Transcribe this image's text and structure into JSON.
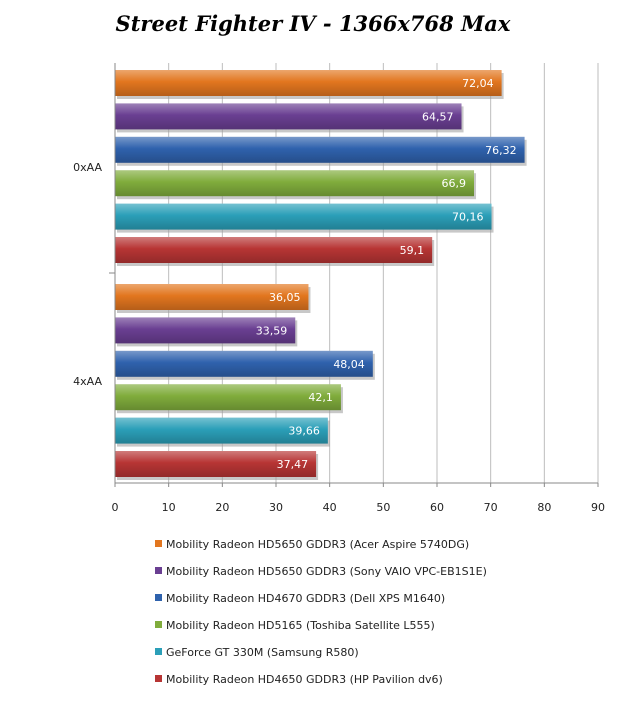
{
  "chart_data": {
    "type": "bar",
    "orientation": "horizontal",
    "title": "Street Fighter IV - 1366x768 Max",
    "categories": [
      "0xAA",
      "4xAA"
    ],
    "series": [
      {
        "name": "Mobility Radeon HD5650 GDDR3 (Acer Aspire 5740DG)",
        "color": "#e2761f",
        "values": [
          72.04,
          36.05
        ],
        "labels": [
          "72,04",
          "36,05"
        ]
      },
      {
        "name": "Mobility Radeon HD5650 GDDR3 (Sony VAIO VPC-EB1S1E)",
        "color": "#6a3f92",
        "values": [
          64.57,
          33.59
        ],
        "labels": [
          "64,57",
          "33,59"
        ]
      },
      {
        "name": "Mobility Radeon HD4670 GDDR3 (Dell XPS M1640)",
        "color": "#2f62ad",
        "values": [
          76.32,
          48.04
        ],
        "labels": [
          "76,32",
          "48,04"
        ]
      },
      {
        "name": "Mobility Radeon HD5165 (Toshiba Satellite L555)",
        "color": "#80ac3c",
        "values": [
          66.9,
          42.1
        ],
        "labels": [
          "66,9",
          "42,1"
        ]
      },
      {
        "name": "GeForce GT 330M (Samsung R580)",
        "color": "#2b9fb8",
        "values": [
          70.16,
          39.66
        ],
        "labels": [
          "70,16",
          "39,66"
        ]
      },
      {
        "name": "Mobility Radeon HD4650 GDDR3 (HP Pavilion dv6)",
        "color": "#b73534",
        "values": [
          59.1,
          37.47
        ],
        "labels": [
          "59,1",
          "37,47"
        ]
      }
    ],
    "xlim": [
      0,
      90
    ],
    "xticks": [
      "0",
      "10",
      "20",
      "30",
      "40",
      "50",
      "60",
      "70",
      "80",
      "90"
    ],
    "grid": "vertical",
    "legend_position": "bottom"
  }
}
